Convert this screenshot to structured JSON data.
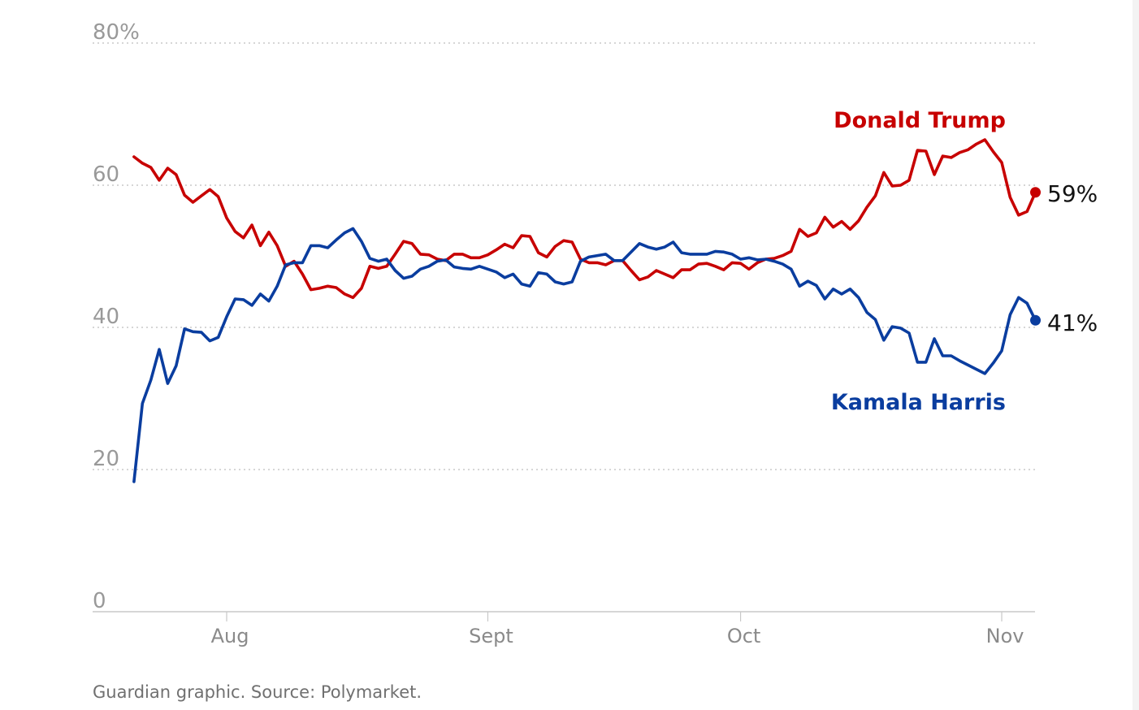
{
  "chart_data": {
    "type": "line",
    "title": "",
    "xlabel": "",
    "ylabel": "",
    "ylim": [
      0,
      80
    ],
    "yticks": [
      {
        "value": 80,
        "label": "80%"
      },
      {
        "value": 60,
        "label": "60"
      },
      {
        "value": 40,
        "label": "40"
      },
      {
        "value": 20,
        "label": "20"
      },
      {
        "value": 0,
        "label": "0"
      }
    ],
    "x_unit": "days since Aug 1",
    "xlim": [
      -11,
      96
    ],
    "xticks": [
      {
        "value": 0,
        "label": "Aug"
      },
      {
        "value": 31,
        "label": "Sept"
      },
      {
        "value": 61,
        "label": "Oct"
      },
      {
        "value": 92,
        "label": "Nov"
      }
    ],
    "grid": true,
    "x_start": -11,
    "series": [
      {
        "name": "Donald Trump",
        "color": "#c70000",
        "end_label": "59%",
        "values": [
          64.0,
          63.1,
          62.5,
          60.7,
          62.4,
          61.5,
          58.6,
          57.6,
          58.5,
          59.4,
          58.4,
          55.4,
          53.5,
          52.6,
          54.4,
          51.5,
          53.4,
          51.5,
          48.6,
          49.3,
          47.5,
          45.3,
          45.5,
          45.8,
          45.6,
          44.7,
          44.2,
          45.5,
          48.6,
          48.3,
          48.6,
          50.3,
          52.1,
          51.8,
          50.3,
          50.2,
          49.6,
          49.4,
          50.3,
          50.3,
          49.8,
          49.8,
          50.2,
          50.9,
          51.7,
          51.2,
          52.9,
          52.8,
          50.5,
          49.9,
          51.4,
          52.2,
          52.0,
          49.6,
          49.1,
          49.1,
          48.8,
          49.4,
          49.4,
          48.0,
          46.7,
          47.1,
          48.0,
          47.5,
          47.0,
          48.1,
          48.1,
          48.9,
          49.0,
          48.6,
          48.1,
          49.1,
          49.0,
          48.2,
          49.1,
          49.6,
          49.7,
          50.1,
          50.7,
          53.8,
          52.8,
          53.3,
          55.5,
          54.1,
          54.9,
          53.8,
          55.0,
          56.9,
          58.5,
          61.8,
          59.9,
          60.0,
          60.7,
          64.9,
          64.8,
          61.5,
          64.1,
          63.9,
          64.6,
          65.0,
          65.8,
          66.4,
          64.7,
          63.2,
          58.3,
          55.8,
          56.3,
          59.0
        ]
      },
      {
        "name": "Kamala Harris",
        "color": "#0a3d9f",
        "end_label": "41%",
        "values": [
          18.3,
          29.3,
          32.6,
          36.9,
          32.1,
          34.6,
          39.8,
          39.4,
          39.3,
          38.1,
          38.6,
          41.5,
          44.0,
          43.9,
          43.1,
          44.7,
          43.7,
          45.8,
          48.8,
          49.1,
          49.1,
          51.5,
          51.5,
          51.2,
          52.3,
          53.3,
          53.9,
          52.1,
          49.7,
          49.3,
          49.6,
          48.0,
          46.9,
          47.2,
          48.2,
          48.6,
          49.3,
          49.5,
          48.5,
          48.3,
          48.2,
          48.6,
          48.2,
          47.8,
          47.0,
          47.5,
          46.1,
          45.8,
          47.7,
          47.5,
          46.4,
          46.1,
          46.4,
          49.3,
          49.9,
          50.1,
          50.3,
          49.4,
          49.4,
          50.6,
          51.8,
          51.3,
          51.0,
          51.3,
          52.0,
          50.5,
          50.3,
          50.3,
          50.3,
          50.7,
          50.6,
          50.3,
          49.6,
          49.8,
          49.5,
          49.6,
          49.3,
          48.9,
          48.2,
          45.8,
          46.5,
          45.9,
          44.0,
          45.4,
          44.7,
          45.4,
          44.2,
          42.1,
          41.1,
          38.2,
          40.1,
          39.9,
          39.2,
          35.1,
          35.1,
          38.4,
          36.0,
          36.0,
          35.3,
          34.7,
          34.1,
          33.5,
          35.0,
          36.7,
          41.8,
          44.2,
          43.4,
          41.0
        ]
      }
    ],
    "source": "Guardian graphic. Source: Polymarket."
  }
}
